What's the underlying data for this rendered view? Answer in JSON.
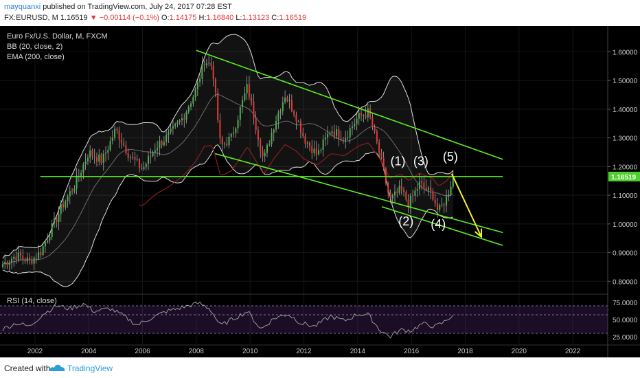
{
  "header": {
    "author": "mayquanxi",
    "published": "published on TradingView.com, July 24, 2017 07:28 EST",
    "symbol": "FX:EURUSD, M",
    "price": "1.16519",
    "change": "−0.00114 (−0.1%)",
    "o_label": "O:",
    "o_value": "1.14175",
    "h_label": "H:",
    "h_value": "1.16840",
    "l_label": "L:",
    "l_value": "1.13123",
    "c_label": "C:",
    "c_value": "1.16519"
  },
  "legend": {
    "title": "Euro Fx/U.S. Dollar, M, FXCM",
    "bb": "BB (20, close, 2)",
    "ema": "EMA (200, close)"
  },
  "rsi_label": "RSI (14, close)",
  "footer": {
    "created": "Created with",
    "brand": "TradingView"
  },
  "colors": {
    "background": "#000000",
    "candle_up": "#4caf50",
    "candle_down": "#e53935",
    "channel": "#5cf022",
    "arrow": "#f2f22a",
    "price_tag": "#4fd12d",
    "rsi": "#9a9a9a",
    "bands": "#e0e0e0",
    "ema": "#8a1f1f"
  },
  "chart_data": [
    {
      "type": "candlestick",
      "title": "Euro Fx/U.S. Dollar, M, FXCM",
      "x_ticks": [
        "2002",
        "2004",
        "2006",
        "2008",
        "2010",
        "2012",
        "2014",
        "2016",
        "2018",
        "2020",
        "2022"
      ],
      "y_ticks": [
        "1.60000",
        "1.50000",
        "1.40000",
        "1.30000",
        "1.20000",
        "1.10000",
        "1.00000",
        "0.90000",
        "0.80000"
      ],
      "ylim": [
        0.76,
        1.68
      ],
      "xlim": [
        2000.7,
        2023.3
      ],
      "current_price": {
        "label": "1.16519",
        "value": 1.16519
      },
      "close_path": [
        {
          "x": 2000.8,
          "y": 0.86
        },
        {
          "x": 2001.3,
          "y": 0.89
        },
        {
          "x": 2001.8,
          "y": 0.87
        },
        {
          "x": 2002.2,
          "y": 0.9
        },
        {
          "x": 2002.6,
          "y": 0.98
        },
        {
          "x": 2003.0,
          "y": 1.06
        },
        {
          "x": 2003.5,
          "y": 1.14
        },
        {
          "x": 2004.0,
          "y": 1.25
        },
        {
          "x": 2004.5,
          "y": 1.22
        },
        {
          "x": 2005.0,
          "y": 1.33
        },
        {
          "x": 2005.5,
          "y": 1.24
        },
        {
          "x": 2006.0,
          "y": 1.19
        },
        {
          "x": 2006.5,
          "y": 1.27
        },
        {
          "x": 2007.0,
          "y": 1.31
        },
        {
          "x": 2007.5,
          "y": 1.37
        },
        {
          "x": 2008.0,
          "y": 1.47
        },
        {
          "x": 2008.3,
          "y": 1.57
        },
        {
          "x": 2008.6,
          "y": 1.55
        },
        {
          "x": 2008.9,
          "y": 1.27
        },
        {
          "x": 2009.3,
          "y": 1.3
        },
        {
          "x": 2009.9,
          "y": 1.48
        },
        {
          "x": 2010.5,
          "y": 1.22
        },
        {
          "x": 2010.9,
          "y": 1.35
        },
        {
          "x": 2011.3,
          "y": 1.45
        },
        {
          "x": 2011.7,
          "y": 1.38
        },
        {
          "x": 2012.0,
          "y": 1.3
        },
        {
          "x": 2012.5,
          "y": 1.24
        },
        {
          "x": 2013.0,
          "y": 1.33
        },
        {
          "x": 2013.5,
          "y": 1.3
        },
        {
          "x": 2014.0,
          "y": 1.37
        },
        {
          "x": 2014.4,
          "y": 1.39
        },
        {
          "x": 2014.8,
          "y": 1.25
        },
        {
          "x": 2015.2,
          "y": 1.08
        },
        {
          "x": 2015.6,
          "y": 1.12
        },
        {
          "x": 2015.9,
          "y": 1.07
        },
        {
          "x": 2016.3,
          "y": 1.14
        },
        {
          "x": 2016.8,
          "y": 1.1
        },
        {
          "x": 2017.0,
          "y": 1.04
        },
        {
          "x": 2017.3,
          "y": 1.09
        },
        {
          "x": 2017.55,
          "y": 1.165
        }
      ],
      "overlays": [
        {
          "name": "BB (20, close, 2)",
          "type": "bands"
        },
        {
          "name": "EMA (200, close)",
          "type": "line"
        }
      ],
      "annotations": [
        {
          "label": "(1)",
          "x": 2015.5,
          "y": 1.205
        },
        {
          "label": "(2)",
          "x": 2015.8,
          "y": 0.995
        },
        {
          "label": "(3)",
          "x": 2016.35,
          "y": 1.205
        },
        {
          "label": "(4)",
          "x": 2017.0,
          "y": 0.985
        },
        {
          "label": "(5)",
          "x": 2017.45,
          "y": 1.22
        }
      ],
      "trendlines": [
        {
          "name": "channel-upper",
          "x1": 2008.0,
          "y1": 1.605,
          "x2": 2019.4,
          "y2": 1.225
        },
        {
          "name": "channel-middle",
          "x1": 2008.7,
          "y1": 1.245,
          "x2": 2019.4,
          "y2": 0.97
        },
        {
          "name": "channel-lower",
          "x1": 2014.9,
          "y1": 1.06,
          "x2": 2019.4,
          "y2": 0.925
        },
        {
          "name": "horizontal-resistance",
          "x1": 2002.2,
          "y1": 1.165,
          "x2": 2019.4,
          "y2": 1.165
        }
      ],
      "projection_arrow": {
        "x1": 2017.5,
        "y1": 1.175,
        "x2": 2018.6,
        "y2": 0.955
      }
    },
    {
      "type": "line",
      "title": "RSI (14, close)",
      "y_ticks": [
        "75.0000",
        "50.0000",
        "25.0000"
      ],
      "ylim": [
        15,
        85
      ],
      "xlim": [
        2000.7,
        2023.3
      ],
      "bands": [
        70,
        30
      ],
      "points": [
        {
          "x": 2000.8,
          "y": 36
        },
        {
          "x": 2001.3,
          "y": 45
        },
        {
          "x": 2001.8,
          "y": 40
        },
        {
          "x": 2002.3,
          "y": 58
        },
        {
          "x": 2002.8,
          "y": 70
        },
        {
          "x": 2003.3,
          "y": 66
        },
        {
          "x": 2003.8,
          "y": 73
        },
        {
          "x": 2004.2,
          "y": 62
        },
        {
          "x": 2004.8,
          "y": 66
        },
        {
          "x": 2005.3,
          "y": 55
        },
        {
          "x": 2005.8,
          "y": 42
        },
        {
          "x": 2006.3,
          "y": 52
        },
        {
          "x": 2006.9,
          "y": 62
        },
        {
          "x": 2007.5,
          "y": 68
        },
        {
          "x": 2008.1,
          "y": 74
        },
        {
          "x": 2008.5,
          "y": 66
        },
        {
          "x": 2008.9,
          "y": 41
        },
        {
          "x": 2009.4,
          "y": 52
        },
        {
          "x": 2009.9,
          "y": 62
        },
        {
          "x": 2010.4,
          "y": 36
        },
        {
          "x": 2010.9,
          "y": 52
        },
        {
          "x": 2011.4,
          "y": 58
        },
        {
          "x": 2011.9,
          "y": 45
        },
        {
          "x": 2012.4,
          "y": 40
        },
        {
          "x": 2013.0,
          "y": 55
        },
        {
          "x": 2013.5,
          "y": 48
        },
        {
          "x": 2014.0,
          "y": 58
        },
        {
          "x": 2014.4,
          "y": 57
        },
        {
          "x": 2014.8,
          "y": 36
        },
        {
          "x": 2015.2,
          "y": 25
        },
        {
          "x": 2015.6,
          "y": 35
        },
        {
          "x": 2016.0,
          "y": 34
        },
        {
          "x": 2016.4,
          "y": 44
        },
        {
          "x": 2016.9,
          "y": 40
        },
        {
          "x": 2017.2,
          "y": 46
        },
        {
          "x": 2017.55,
          "y": 57
        }
      ]
    }
  ]
}
